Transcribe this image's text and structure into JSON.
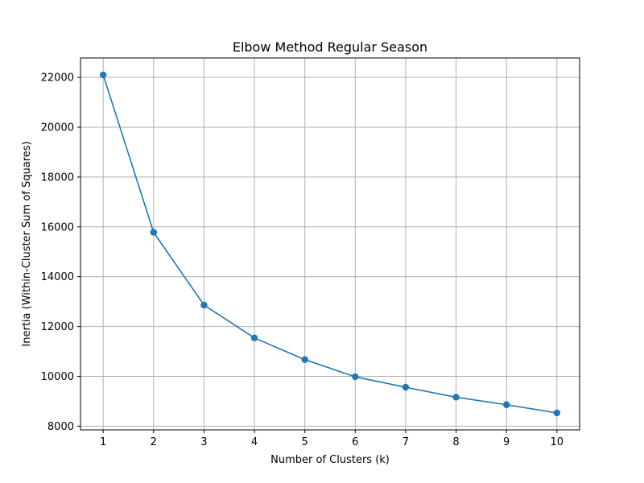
{
  "chart_data": {
    "type": "line",
    "title": "Elbow Method Regular Season",
    "xlabel": "Number of Clusters (k)",
    "ylabel": "Inertia (Within-Cluster Sum of Squares)",
    "x": [
      1,
      2,
      3,
      4,
      5,
      6,
      7,
      8,
      9,
      10
    ],
    "series": [
      {
        "values": [
          22100,
          15780,
          12860,
          11540,
          10670,
          9980,
          9560,
          9160,
          8860,
          8530
        ],
        "color": "#1f77b4",
        "marker": "circle"
      }
    ],
    "xticks": [
      1,
      2,
      3,
      4,
      5,
      6,
      7,
      8,
      9,
      10
    ],
    "yticks": [
      8000,
      10000,
      12000,
      14000,
      16000,
      18000,
      20000,
      22000
    ],
    "xlim": [
      0.55,
      10.45
    ],
    "ylim": [
      7850,
      22780
    ],
    "grid": true,
    "legend": "none"
  }
}
